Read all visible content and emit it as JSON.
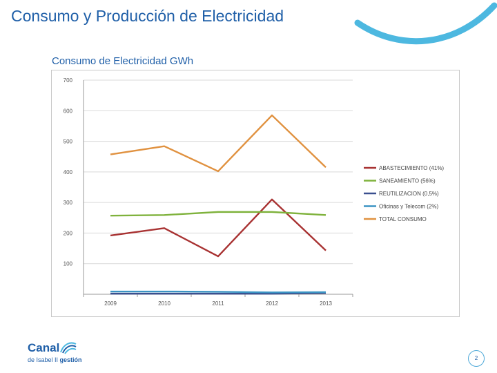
{
  "slide": {
    "title": "Consumo y Producción de Electricidad",
    "page_number": "2"
  },
  "logo": {
    "name": "Canal",
    "subtitle_prefix": "de Isabel II ",
    "subtitle_bold": "gestión"
  },
  "colors": {
    "title": "#1f5fa8",
    "accent_swoosh": "#4db8e0"
  },
  "chart_data": {
    "type": "line",
    "title": "Consumo de Electricidad GWh",
    "xlabel": "",
    "ylabel": "",
    "x": [
      "2009",
      "2010",
      "2011",
      "2012",
      "2013"
    ],
    "ylim": [
      0,
      700
    ],
    "yticks": [
      100,
      200,
      300,
      400,
      500,
      600,
      700
    ],
    "ytick_labels": [
      "100",
      "200",
      "300",
      "400",
      "500",
      "600",
      "700"
    ],
    "grid": true,
    "legend_position": "right",
    "series": [
      {
        "name": "ABASTECIMIENTO (41%)",
        "color": "#a83232",
        "values": [
          192,
          216,
          124,
          310,
          143
        ]
      },
      {
        "name": "SANEAMIENTO (56%)",
        "color": "#7fb23c",
        "values": [
          257,
          259,
          269,
          269,
          259
        ]
      },
      {
        "name": "REUTILIZACION (0,5%)",
        "color": "#3a4f8f",
        "values": [
          2,
          2,
          2,
          2,
          4
        ]
      },
      {
        "name": "Oficinas y Telecom (2%)",
        "color": "#3b94c3",
        "values": [
          9,
          9,
          8,
          6,
          7
        ]
      },
      {
        "name": "TOTAL CONSUMO",
        "color": "#e0913f",
        "values": [
          457,
          484,
          402,
          585,
          415
        ]
      }
    ]
  }
}
